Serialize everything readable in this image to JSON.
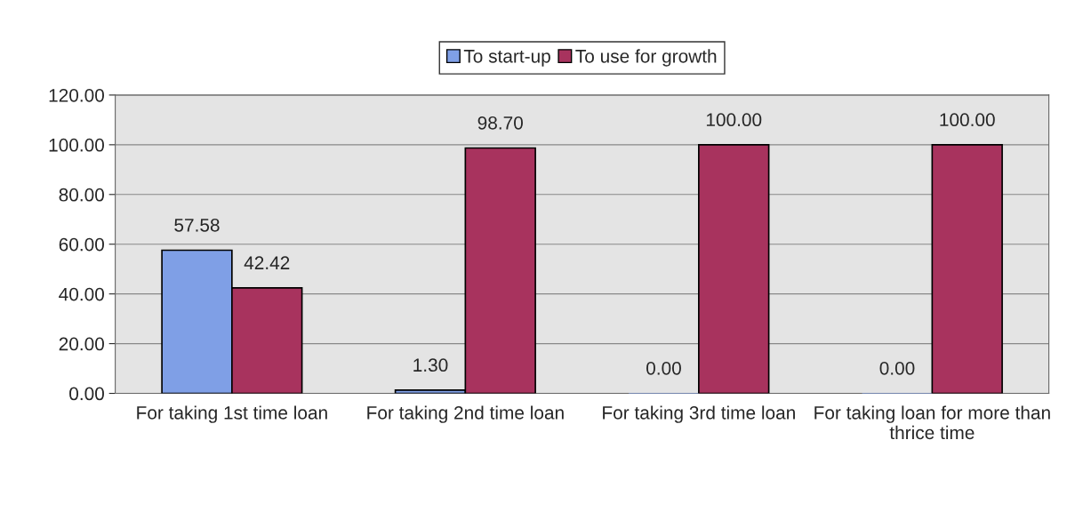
{
  "chart_data": {
    "type": "bar",
    "categories": [
      "For taking 1st time loan",
      "For taking 2nd time loan",
      "For taking 3rd time loan",
      "For taking loan for more than thrice time"
    ],
    "series": [
      {
        "name": "To start-up",
        "color": "#7f9fe6",
        "values": [
          57.58,
          1.3,
          0.0,
          0.0
        ],
        "value_labels": [
          "57.58",
          "1.30",
          "0.00",
          "0.00"
        ]
      },
      {
        "name": "To use for growth",
        "color": "#a8335e",
        "values": [
          42.42,
          98.7,
          100.0,
          100.0
        ],
        "value_labels": [
          "42.42",
          "98.70",
          "100.00",
          "100.00"
        ]
      }
    ],
    "ylim": [
      0,
      120
    ],
    "yticks": [
      {
        "value": 0,
        "label": "0.00"
      },
      {
        "value": 20,
        "label": "20.00"
      },
      {
        "value": 40,
        "label": "40.00"
      },
      {
        "value": 60,
        "label": "60.00"
      },
      {
        "value": 80,
        "label": "80.00"
      },
      {
        "value": 100,
        "label": "100.00"
      },
      {
        "value": 120,
        "label": "120.00"
      }
    ],
    "grid": "y",
    "legend": "top"
  }
}
